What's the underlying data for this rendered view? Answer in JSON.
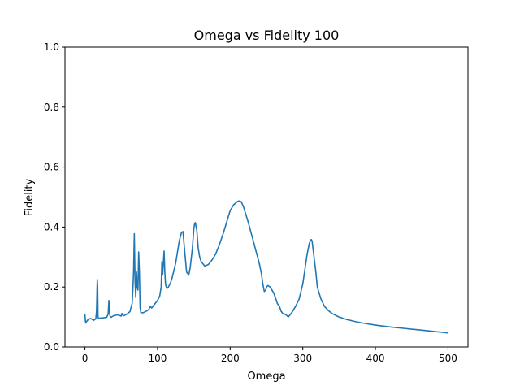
{
  "chart_data": {
    "type": "line",
    "title": "Omega vs Fidelity 100",
    "xlabel": "Omega",
    "ylabel": "Fidelity",
    "xlim": [
      -27.5,
      527.5
    ],
    "ylim": [
      0.0,
      1.0
    ],
    "xticks": [
      0,
      100,
      200,
      300,
      400,
      500
    ],
    "xtick_labels": [
      "0",
      "100",
      "200",
      "300",
      "400",
      "500"
    ],
    "yticks": [
      0.0,
      0.2,
      0.4,
      0.6,
      0.8,
      1.0
    ],
    "ytick_labels": [
      "0.0",
      "0.2",
      "0.4",
      "0.6",
      "0.8",
      "1.0"
    ],
    "grid": false,
    "series_color": "#1f77b4",
    "series": [
      {
        "x": [
          0,
          1,
          2,
          5,
          8,
          12,
          15,
          16,
          17,
          17.5,
          18,
          19,
          20,
          25,
          30,
          32,
          33,
          34,
          35,
          36,
          40,
          45,
          50,
          51,
          52,
          53,
          55,
          58,
          62,
          65,
          66,
          67,
          68,
          69,
          70,
          71,
          72,
          73,
          74,
          75,
          76,
          77,
          80,
          85,
          88,
          90,
          92,
          95,
          100,
          103,
          105,
          106,
          107,
          108,
          109,
          110,
          111,
          112,
          113,
          115,
          118,
          120,
          125,
          130,
          133,
          135,
          137,
          140,
          143,
          145,
          148,
          150,
          151,
          152,
          154,
          156,
          158,
          160,
          165,
          170,
          175,
          180,
          185,
          190,
          195,
          200,
          205,
          210,
          212,
          215,
          218,
          220,
          225,
          230,
          235,
          240,
          243,
          245,
          247,
          249,
          250,
          252,
          255,
          260,
          263,
          265,
          268,
          270,
          273,
          275,
          278,
          280,
          285,
          290,
          295,
          300,
          303,
          306,
          309,
          311,
          312,
          313,
          315,
          318,
          320,
          325,
          330,
          335,
          340,
          350,
          360,
          370,
          380,
          400,
          420,
          440,
          460,
          480,
          500
        ],
        "y": [
          0.108,
          0.08,
          0.084,
          0.093,
          0.095,
          0.089,
          0.094,
          0.12,
          0.225,
          0.2,
          0.1,
          0.095,
          0.096,
          0.097,
          0.099,
          0.11,
          0.155,
          0.11,
          0.1,
          0.099,
          0.105,
          0.107,
          0.103,
          0.112,
          0.108,
          0.104,
          0.106,
          0.11,
          0.118,
          0.145,
          0.19,
          0.25,
          0.378,
          0.22,
          0.165,
          0.25,
          0.2,
          0.19,
          0.317,
          0.25,
          0.13,
          0.115,
          0.114,
          0.12,
          0.125,
          0.135,
          0.13,
          0.14,
          0.155,
          0.17,
          0.2,
          0.285,
          0.24,
          0.28,
          0.32,
          0.25,
          0.21,
          0.2,
          0.195,
          0.2,
          0.215,
          0.23,
          0.28,
          0.355,
          0.382,
          0.385,
          0.33,
          0.25,
          0.24,
          0.265,
          0.33,
          0.395,
          0.41,
          0.415,
          0.39,
          0.33,
          0.3,
          0.285,
          0.27,
          0.275,
          0.29,
          0.31,
          0.34,
          0.375,
          0.415,
          0.455,
          0.475,
          0.485,
          0.487,
          0.485,
          0.47,
          0.455,
          0.415,
          0.37,
          0.325,
          0.28,
          0.245,
          0.21,
          0.185,
          0.19,
          0.2,
          0.205,
          0.2,
          0.18,
          0.16,
          0.145,
          0.135,
          0.12,
          0.11,
          0.11,
          0.105,
          0.1,
          0.115,
          0.135,
          0.16,
          0.21,
          0.26,
          0.31,
          0.345,
          0.358,
          0.358,
          0.35,
          0.31,
          0.25,
          0.2,
          0.16,
          0.135,
          0.122,
          0.112,
          0.1,
          0.092,
          0.086,
          0.081,
          0.073,
          0.067,
          0.062,
          0.057,
          0.052,
          0.047
        ]
      }
    ]
  }
}
